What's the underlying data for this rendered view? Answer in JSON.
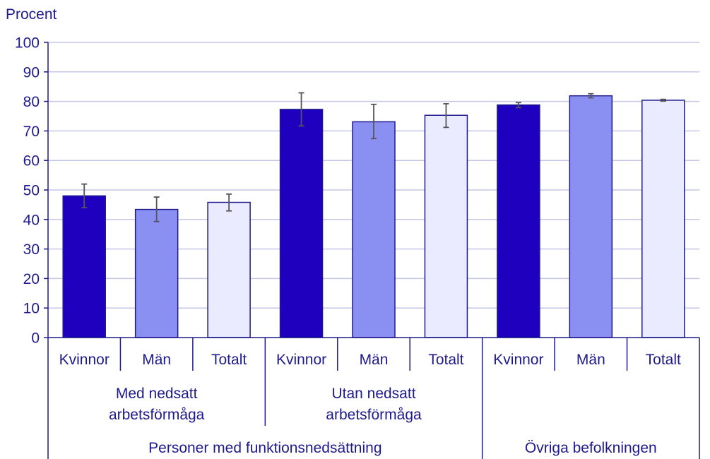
{
  "chart_data": {
    "type": "bar",
    "ylabel": "Procent",
    "ylim": [
      0,
      100
    ],
    "yticks": [
      0,
      10,
      20,
      30,
      40,
      50,
      60,
      70,
      80,
      90,
      100
    ],
    "grid": true,
    "categories": [
      "Kvinnor",
      "Män",
      "Totalt",
      "Kvinnor",
      "Män",
      "Totalt",
      "Kvinnor",
      "Män",
      "Totalt"
    ],
    "values": [
      48,
      43.4,
      45.8,
      77.3,
      73.1,
      75.3,
      78.8,
      81.9,
      80.4
    ],
    "error_low": [
      44,
      39.3,
      42.9,
      71.7,
      67.4,
      71.2,
      77.9,
      81.2,
      80.1
    ],
    "error_high": [
      52,
      47.6,
      48.6,
      82.9,
      79,
      79.2,
      79.6,
      82.6,
      80.7
    ],
    "bar_colors": [
      "#1e00be",
      "#8a90f2",
      "#ebebff",
      "#1e00be",
      "#8a90f2",
      "#ebebff",
      "#1e00be",
      "#8a90f2",
      "#ebebff"
    ],
    "subgroups": [
      {
        "label": [
          "Med nedsatt",
          "arbetsförmåga"
        ],
        "from": 0,
        "to": 3
      },
      {
        "label": [
          "Utan nedsatt",
          "arbetsförmåga"
        ],
        "from": 3,
        "to": 6
      }
    ],
    "groups": [
      {
        "label": "Personer med funktionsnedsättning",
        "from": 0,
        "to": 6
      },
      {
        "label": "Övriga befolkningen",
        "from": 6,
        "to": 9
      }
    ],
    "colors": {
      "axis": "#1f1a8c",
      "grid": "#c6c6e6",
      "bar_stroke": "#1f1a8c",
      "error": "#555555"
    }
  }
}
